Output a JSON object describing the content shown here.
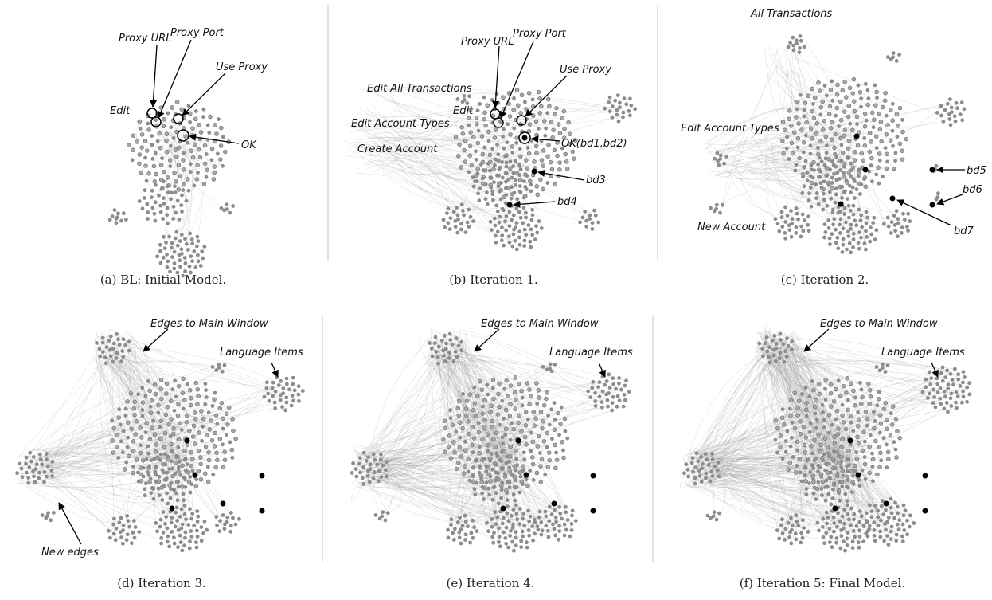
{
  "panels": [
    {
      "id": "a",
      "caption": "(a) BL: Initial Model.",
      "labels": [
        {
          "text": "Proxy URL"
        },
        {
          "text": "Proxy Port"
        },
        {
          "text": "Use Proxy"
        },
        {
          "text": "Edit"
        },
        {
          "text": "OK"
        }
      ]
    },
    {
      "id": "b",
      "caption": "(b) Iteration 1.",
      "labels": [
        {
          "text": "Proxy URL"
        },
        {
          "text": "Proxy Port"
        },
        {
          "text": "Use Proxy"
        },
        {
          "text": "Edit All Transactions"
        },
        {
          "text": "Edit"
        },
        {
          "text": "Edit Account Types"
        },
        {
          "text": "Create Account"
        },
        {
          "text": "OK(bd1,bd2)"
        },
        {
          "text": "bd3"
        },
        {
          "text": "bd4"
        }
      ]
    },
    {
      "id": "c",
      "caption": "(c) Iteration 2.",
      "labels": [
        {
          "text": "All Transactions"
        },
        {
          "text": "Edit Account Types"
        },
        {
          "text": "bd5"
        },
        {
          "text": "bd6"
        },
        {
          "text": "bd7"
        },
        {
          "text": "New Account"
        }
      ]
    },
    {
      "id": "d",
      "caption": "(d) Iteration 3.",
      "labels": [
        {
          "text": "Edges to Main Window"
        },
        {
          "text": "Language Items"
        },
        {
          "text": "New edges"
        }
      ]
    },
    {
      "id": "e",
      "caption": "(e) Iteration 4.",
      "labels": [
        {
          "text": "Edges to Main Window"
        },
        {
          "text": "Language Items"
        }
      ]
    },
    {
      "id": "f",
      "caption": "(f) Iteration 5: Final Model.",
      "labels": [
        {
          "text": "Edges to Main Window"
        },
        {
          "text": "Language Items"
        }
      ]
    }
  ],
  "colors": {
    "node": "#8c8c8c",
    "edge": "#9a9a9a",
    "highlight": "#000000"
  }
}
